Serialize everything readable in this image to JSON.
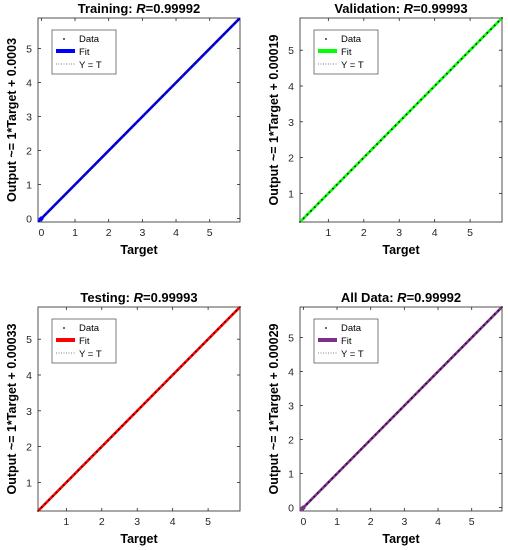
{
  "chart_data": [
    {
      "type": "scatter",
      "title_prefix": "Training: ",
      "title_r_symbol": "R",
      "title_r_value": "=0.99992",
      "xlabel": "Target",
      "ylabel": "Output ~= 1*Target + 0.0003",
      "xlim": [
        -0.1,
        5.9
      ],
      "ylim": [
        -0.1,
        5.9
      ],
      "xticks": [
        0,
        1,
        2,
        3,
        4,
        5
      ],
      "yticks": [
        0,
        1,
        2,
        3,
        4,
        5
      ],
      "fit": {
        "slope": 1,
        "intercept": 0.0003
      },
      "fit_color": "#0000ff",
      "data_range": [
        0,
        5.85
      ],
      "legend": [
        "Data",
        "Fit",
        "Y = T"
      ],
      "legend_location": "top-left"
    },
    {
      "type": "scatter",
      "title_prefix": "Validation: ",
      "title_r_symbol": "R",
      "title_r_value": "=0.99993",
      "xlabel": "Target",
      "ylabel": "Output ~= 1*Target + 0.00019",
      "xlim": [
        0.2,
        5.9
      ],
      "ylim": [
        0.2,
        5.9
      ],
      "xticks": [
        1,
        2,
        3,
        4,
        5
      ],
      "yticks": [
        1,
        2,
        3,
        4,
        5
      ],
      "fit": {
        "slope": 1,
        "intercept": 0.00019
      },
      "fit_color": "#00ff00",
      "data_range": [
        0.2,
        5.9
      ],
      "legend": [
        "Data",
        "Fit",
        "Y = T"
      ],
      "legend_location": "top-left"
    },
    {
      "type": "scatter",
      "title_prefix": "Testing: ",
      "title_r_symbol": "R",
      "title_r_value": "=0.99993",
      "xlabel": "Target",
      "ylabel": "Output ~= 1*Target + 0.00033",
      "xlim": [
        0.2,
        5.9
      ],
      "ylim": [
        0.2,
        5.9
      ],
      "xticks": [
        1,
        2,
        3,
        4,
        5
      ],
      "yticks": [
        1,
        2,
        3,
        4,
        5
      ],
      "fit": {
        "slope": 1,
        "intercept": 0.00033
      },
      "fit_color": "#ff0000",
      "data_range": [
        0.2,
        5.9
      ],
      "legend": [
        "Data",
        "Fit",
        "Y = T"
      ],
      "legend_location": "top-left"
    },
    {
      "type": "scatter",
      "title_prefix": "All Data: ",
      "title_r_symbol": "R",
      "title_r_value": "=0.99992",
      "xlabel": "Target",
      "ylabel": "Output ~= 1*Target + 0.00029",
      "xlim": [
        -0.1,
        5.9
      ],
      "ylim": [
        -0.1,
        5.9
      ],
      "xticks": [
        0,
        1,
        2,
        3,
        4,
        5
      ],
      "yticks": [
        0,
        1,
        2,
        3,
        4,
        5
      ],
      "fit": {
        "slope": 1,
        "intercept": 0.00029
      },
      "fit_color": "#7e2f8e",
      "data_range": [
        0,
        5.9
      ],
      "legend": [
        "Data",
        "Fit",
        "Y = T"
      ],
      "legend_location": "top-left"
    }
  ]
}
